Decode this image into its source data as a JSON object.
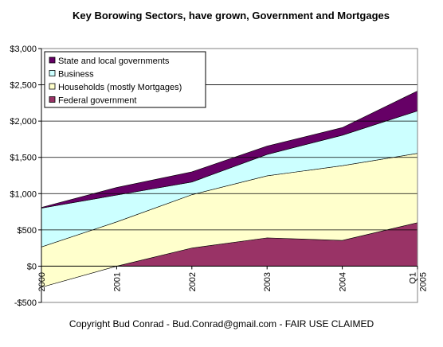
{
  "chart_data": {
    "type": "area",
    "stacked": true,
    "title": "Key Borowing Sectors, have grown, Government and Mortgages",
    "footer": "Copyright Bud Conrad - Bud.Conrad@gmail.com - FAIR USE CLAIMED",
    "categories": [
      "2000",
      "2001",
      "2002",
      "2003",
      "2004",
      "Q1 2005"
    ],
    "category_lines": [
      [
        "2000"
      ],
      [
        "2001"
      ],
      [
        "2002"
      ],
      [
        "2003"
      ],
      [
        "2004"
      ],
      [
        "Q1",
        "2005"
      ]
    ],
    "ylim": [
      -500,
      3000
    ],
    "yticks": [
      -500,
      0,
      500,
      1000,
      1500,
      2000,
      2500,
      3000
    ],
    "ytick_labels": [
      "-$500",
      "$0",
      "$500",
      "$1,000",
      "$1,500",
      "$2,000",
      "$2,500",
      "$3,000"
    ],
    "grid": true,
    "legend_position": "top-left",
    "plot_background": "#ffffff",
    "series": [
      {
        "name": "Federal government",
        "color": "#993366",
        "values": [
          -290,
          0,
          250,
          390,
          355,
          600
        ]
      },
      {
        "name": "Households  (mostly Mortgages)",
        "color": "#ffffcc",
        "values": [
          555,
          610,
          735,
          855,
          1030,
          955
        ]
      },
      {
        "name": "Business",
        "color": "#ccffff",
        "values": [
          535,
          370,
          175,
          295,
          420,
          585
        ]
      },
      {
        "name": "State and local governments",
        "color": "#660066",
        "values": [
          10,
          105,
          140,
          115,
          105,
          275
        ]
      }
    ],
    "legend_order": [
      "State and local governments",
      "Business",
      "Households  (mostly Mortgages)",
      "Federal government"
    ]
  }
}
